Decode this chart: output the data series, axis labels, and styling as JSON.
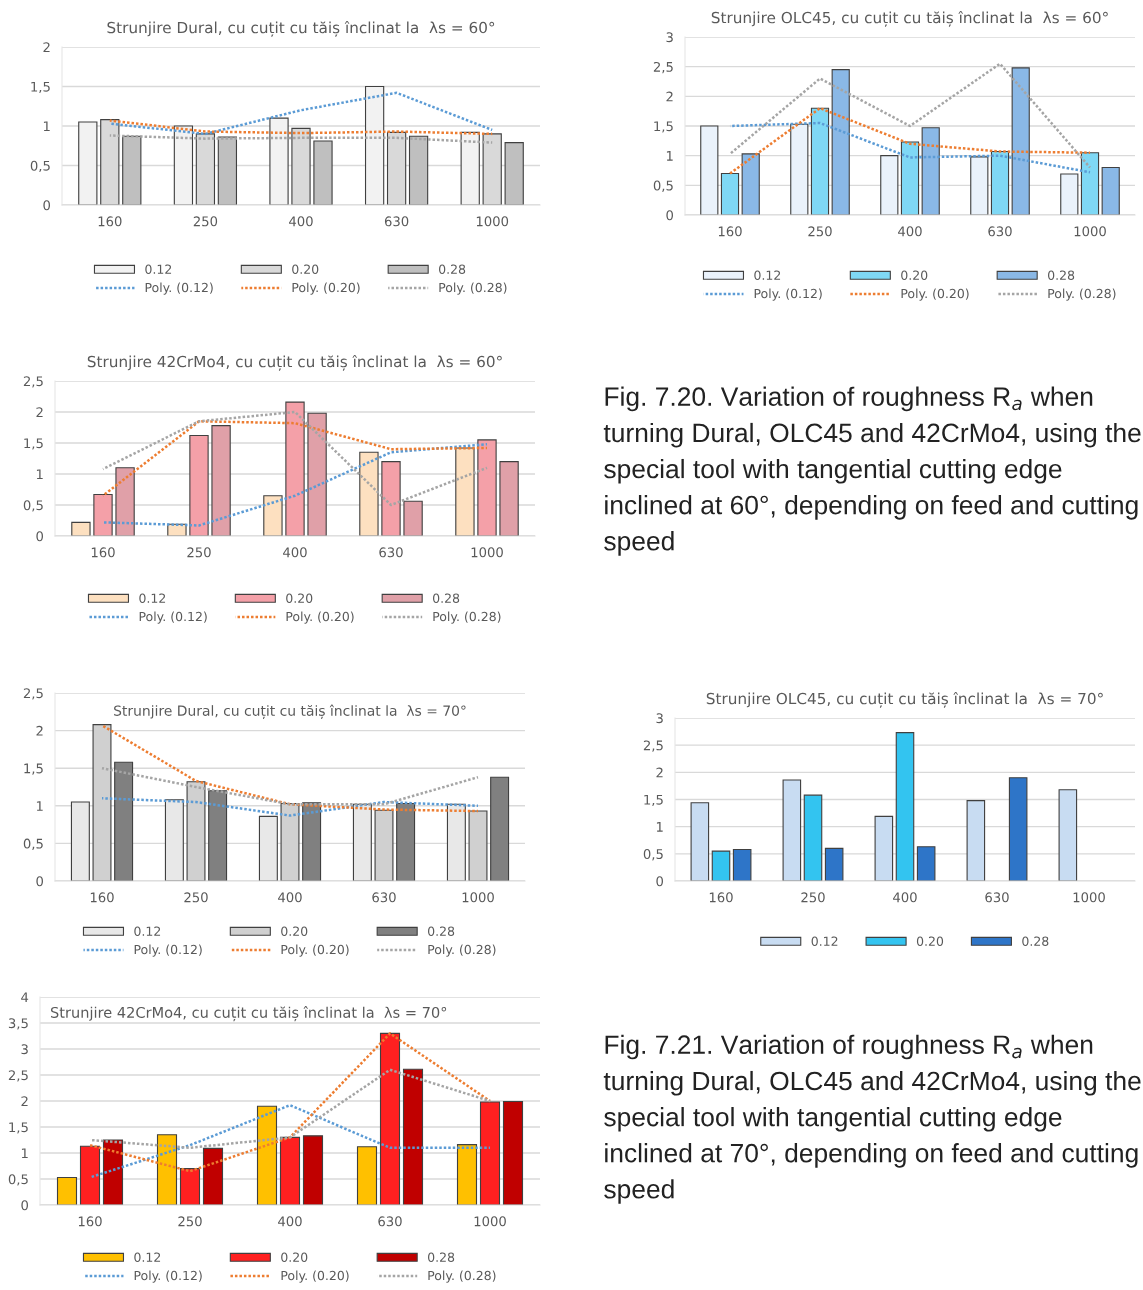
{
  "chart_data": [
    {
      "type": "bar",
      "title": "Strunjire Dural, cu cuțit cu tăiș înclinat la  λs = 60°",
      "categories": [
        "160",
        "250",
        "400",
        "630",
        "1000"
      ],
      "ylim": [
        0,
        2
      ],
      "yticks": [
        0,
        {
          "value": 0.5,
          "label": "0,5"
        },
        1,
        {
          "value": 1.5,
          "label": "1,5"
        },
        2
      ],
      "grid": "y",
      "legend": "bottom",
      "series": [
        {
          "name": "0.12",
          "color": "#f2f2f2",
          "values": [
            1.05,
            1.0,
            1.1,
            1.5,
            0.92
          ]
        },
        {
          "name": "0.20",
          "color": "#d9d9d9",
          "values": [
            1.08,
            0.9,
            0.97,
            0.92,
            0.9
          ]
        },
        {
          "name": "0.28",
          "color": "#bfbfbf",
          "values": [
            0.87,
            0.86,
            0.81,
            0.87,
            0.79
          ]
        },
        {
          "name": "Poly. (0.12)",
          "type": "line",
          "color": "#5b9bd5",
          "line_style": "dotted",
          "marker": "none",
          "values": [
            1.03,
            0.9,
            1.2,
            1.42,
            0.95
          ]
        },
        {
          "name": "Poly. (0.20)",
          "type": "line",
          "color": "#ed7d31",
          "line_style": "dotted",
          "marker": "none",
          "values": [
            1.07,
            0.93,
            0.91,
            0.93,
            0.9
          ]
        },
        {
          "name": "Poly. (0.28)",
          "type": "line",
          "color": "#a5a5a5",
          "line_style": "dotted",
          "marker": "none",
          "values": [
            0.88,
            0.84,
            0.85,
            0.85,
            0.79
          ]
        }
      ]
    },
    {
      "type": "bar",
      "title": "Strunjire OLC45, cu cuțit cu tăiș înclinat la  λs = 60°",
      "categories": [
        "160",
        "250",
        "400",
        "630",
        "1000"
      ],
      "ylim": [
        0,
        3
      ],
      "yticks": [
        0,
        {
          "value": 0.5,
          "label": "0,5"
        },
        1,
        {
          "value": 1.5,
          "label": "1,5"
        },
        2,
        {
          "value": 2.5,
          "label": "2,5"
        },
        3
      ],
      "grid": "y",
      "legend": "bottom",
      "series": [
        {
          "name": "0.12",
          "color": "#eaf2fb",
          "values": [
            1.5,
            1.53,
            1.0,
            0.98,
            0.69
          ]
        },
        {
          "name": "0.20",
          "color": "#7fd8f5",
          "values": [
            0.7,
            1.8,
            1.23,
            1.07,
            1.05
          ]
        },
        {
          "name": "0.28",
          "color": "#8ab8e6",
          "values": [
            1.03,
            2.45,
            1.47,
            2.48,
            0.8
          ]
        },
        {
          "name": "Poly. (0.12)",
          "type": "line",
          "color": "#5b9bd5",
          "line_style": "dotted",
          "marker": "none",
          "values": [
            1.5,
            1.55,
            0.97,
            1.0,
            0.72
          ]
        },
        {
          "name": "Poly. (0.20)",
          "type": "line",
          "color": "#ed7d31",
          "line_style": "dotted",
          "marker": "none",
          "values": [
            0.7,
            1.8,
            1.2,
            1.07,
            1.05
          ]
        },
        {
          "name": "Poly. (0.28)",
          "type": "line",
          "color": "#a5a5a5",
          "line_style": "dotted",
          "marker": "none",
          "values": [
            1.03,
            2.3,
            1.5,
            2.55,
            0.8
          ]
        }
      ]
    },
    {
      "type": "bar",
      "title": "Strunjire 42CrMo4, cu cuțit cu tăiș înclinat la  λs = 60°",
      "categories": [
        "160",
        "250",
        "400",
        "630",
        "1000"
      ],
      "ylim": [
        0,
        2.5
      ],
      "yticks": [
        0,
        {
          "value": 0.5,
          "label": "0,5"
        },
        1,
        {
          "value": 1.5,
          "label": "1,5"
        },
        2,
        {
          "value": 2.5,
          "label": "2,5"
        }
      ],
      "grid": "y",
      "legend": "bottom",
      "series": [
        {
          "name": "0.12",
          "color": "#fde0c0",
          "values": [
            0.22,
            0.19,
            0.65,
            1.35,
            1.42
          ]
        },
        {
          "name": "0.20",
          "color": "#f4a0a8",
          "values": [
            0.67,
            1.62,
            2.16,
            1.2,
            1.55
          ]
        },
        {
          "name": "0.28",
          "color": "#e0a0a8",
          "values": [
            1.1,
            1.78,
            1.98,
            0.56,
            1.2
          ]
        },
        {
          "name": "Poly. (0.12)",
          "type": "line",
          "color": "#5b9bd5",
          "line_style": "dotted",
          "marker": "none",
          "values": [
            0.22,
            0.17,
            0.65,
            1.35,
            1.48
          ]
        },
        {
          "name": "Poly. (0.20)",
          "type": "line",
          "color": "#ed7d31",
          "line_style": "dotted",
          "marker": "none",
          "values": [
            0.65,
            1.85,
            1.82,
            1.4,
            1.42
          ]
        },
        {
          "name": "Poly. (0.28)",
          "type": "line",
          "color": "#a5a5a5",
          "line_style": "dotted",
          "marker": "none",
          "values": [
            1.08,
            1.85,
            2.0,
            0.5,
            1.1
          ]
        }
      ]
    },
    {
      "type": "other",
      "annotations": [
        "Fig. 7.20. Variation of roughness R$_{a}$ when turning Dural, OLC45 and 42CrMo4, using the special tool with tangential cutting edge inclined at 60°, depending on feed and cutting speed"
      ]
    },
    {
      "type": "bar",
      "title": "Strunjire Dural, cu cuțit cu tăiș înclinat la  λs = 70°",
      "categories": [
        "160",
        "250",
        "400",
        "630",
        "1000"
      ],
      "ylim": [
        0,
        2.5
      ],
      "yticks": [
        0,
        {
          "value": 0.5,
          "label": "0,5"
        },
        1,
        {
          "value": 1.5,
          "label": "1,5"
        },
        2,
        {
          "value": 2.5,
          "label": "2,5"
        }
      ],
      "grid": "y",
      "legend": "bottom",
      "series": [
        {
          "name": "0.12",
          "color": "#e8e8e8",
          "values": [
            1.05,
            1.08,
            0.86,
            1.02,
            1.02
          ]
        },
        {
          "name": "0.20",
          "color": "#d0d0d0",
          "values": [
            2.08,
            1.32,
            1.03,
            0.94,
            0.93
          ]
        },
        {
          "name": "0.28",
          "color": "#808080",
          "values": [
            1.58,
            1.2,
            1.04,
            1.03,
            1.38
          ]
        },
        {
          "name": "Poly. (0.12)",
          "type": "line",
          "color": "#5b9bd5",
          "line_style": "dotted",
          "marker": "none",
          "values": [
            1.1,
            1.05,
            0.87,
            1.05,
            1.0
          ]
        },
        {
          "name": "Poly. (0.20)",
          "type": "line",
          "color": "#ed7d31",
          "line_style": "dotted",
          "marker": "none",
          "values": [
            2.07,
            1.33,
            1.02,
            0.95,
            0.93
          ]
        },
        {
          "name": "Poly. (0.28)",
          "type": "line",
          "color": "#a5a5a5",
          "line_style": "dotted",
          "marker": "none",
          "values": [
            1.5,
            1.25,
            1.02,
            1.02,
            1.38
          ]
        }
      ]
    },
    {
      "type": "bar",
      "title": "Strunjire OLC45, cu cuțit cu tăiș înclinat la  λs = 70°",
      "categories": [
        "160",
        "250",
        "400",
        "630",
        "1000"
      ],
      "ylim": [
        0,
        3
      ],
      "yticks": [
        0,
        {
          "value": 0.5,
          "label": "0,5"
        },
        1,
        {
          "value": 1.5,
          "label": "1,5"
        },
        2,
        {
          "value": 2.5,
          "label": "2,5"
        },
        3
      ],
      "grid": "y",
      "legend": "bottom",
      "series": [
        {
          "name": "0.12",
          "color": "#c8dcf2",
          "values": [
            1.44,
            1.86,
            1.19,
            1.48,
            1.68
          ]
        },
        {
          "name": "0.20",
          "color": "#33c4f0",
          "values": [
            0.55,
            1.58,
            2.73,
            null,
            null
          ]
        },
        {
          "name": "0.28",
          "color": "#2e75c8",
          "values": [
            0.58,
            0.6,
            0.63,
            1.9,
            null
          ]
        }
      ]
    },
    {
      "type": "bar",
      "title": "Strunjire 42CrMo4, cu cuțit cu tăiș înclinat la  λs = 70°",
      "categories": [
        "160",
        "250",
        "400",
        "630",
        "1000"
      ],
      "ylim": [
        0,
        4
      ],
      "yticks": [
        0,
        {
          "value": 0.5,
          "label": "0,5"
        },
        1,
        {
          "value": 1.5,
          "label": "1,5"
        },
        2,
        {
          "value": 2.5,
          "label": "2,5"
        },
        3,
        {
          "value": 3.5,
          "label": "3,5"
        },
        4
      ],
      "grid": "y",
      "legend": "bottom",
      "series": [
        {
          "name": "0.12",
          "color": "#ffc000",
          "values": [
            0.53,
            1.35,
            1.9,
            1.12,
            1.16
          ]
        },
        {
          "name": "0.20",
          "color": "#ff2020",
          "values": [
            1.13,
            0.7,
            1.3,
            3.3,
            1.98
          ]
        },
        {
          "name": "0.28",
          "color": "#c00000",
          "values": [
            1.25,
            1.09,
            1.33,
            2.61,
            1.99
          ]
        },
        {
          "name": "Poly. (0.12)",
          "type": "line",
          "color": "#5b9bd5",
          "line_style": "dotted",
          "marker": "none",
          "values": [
            0.53,
            1.15,
            1.92,
            1.1,
            1.1
          ]
        },
        {
          "name": "Poly. (0.20)",
          "type": "line",
          "color": "#ed7d31",
          "line_style": "dotted",
          "marker": "none",
          "values": [
            1.15,
            0.65,
            1.3,
            3.3,
            2.0
          ]
        },
        {
          "name": "Poly. (0.28)",
          "type": "line",
          "color": "#a5a5a5",
          "line_style": "dotted",
          "marker": "none",
          "values": [
            1.25,
            1.1,
            1.3,
            2.6,
            2.0
          ]
        }
      ]
    },
    {
      "type": "other",
      "annotations": [
        "Fig. 7.21. Variation of roughness R$_{a}$ when turning Dural, OLC45 and 42CrMo4, using the special tool with tangential cutting edge inclined at 70°, depending on feed and cutting speed"
      ]
    }
  ]
}
